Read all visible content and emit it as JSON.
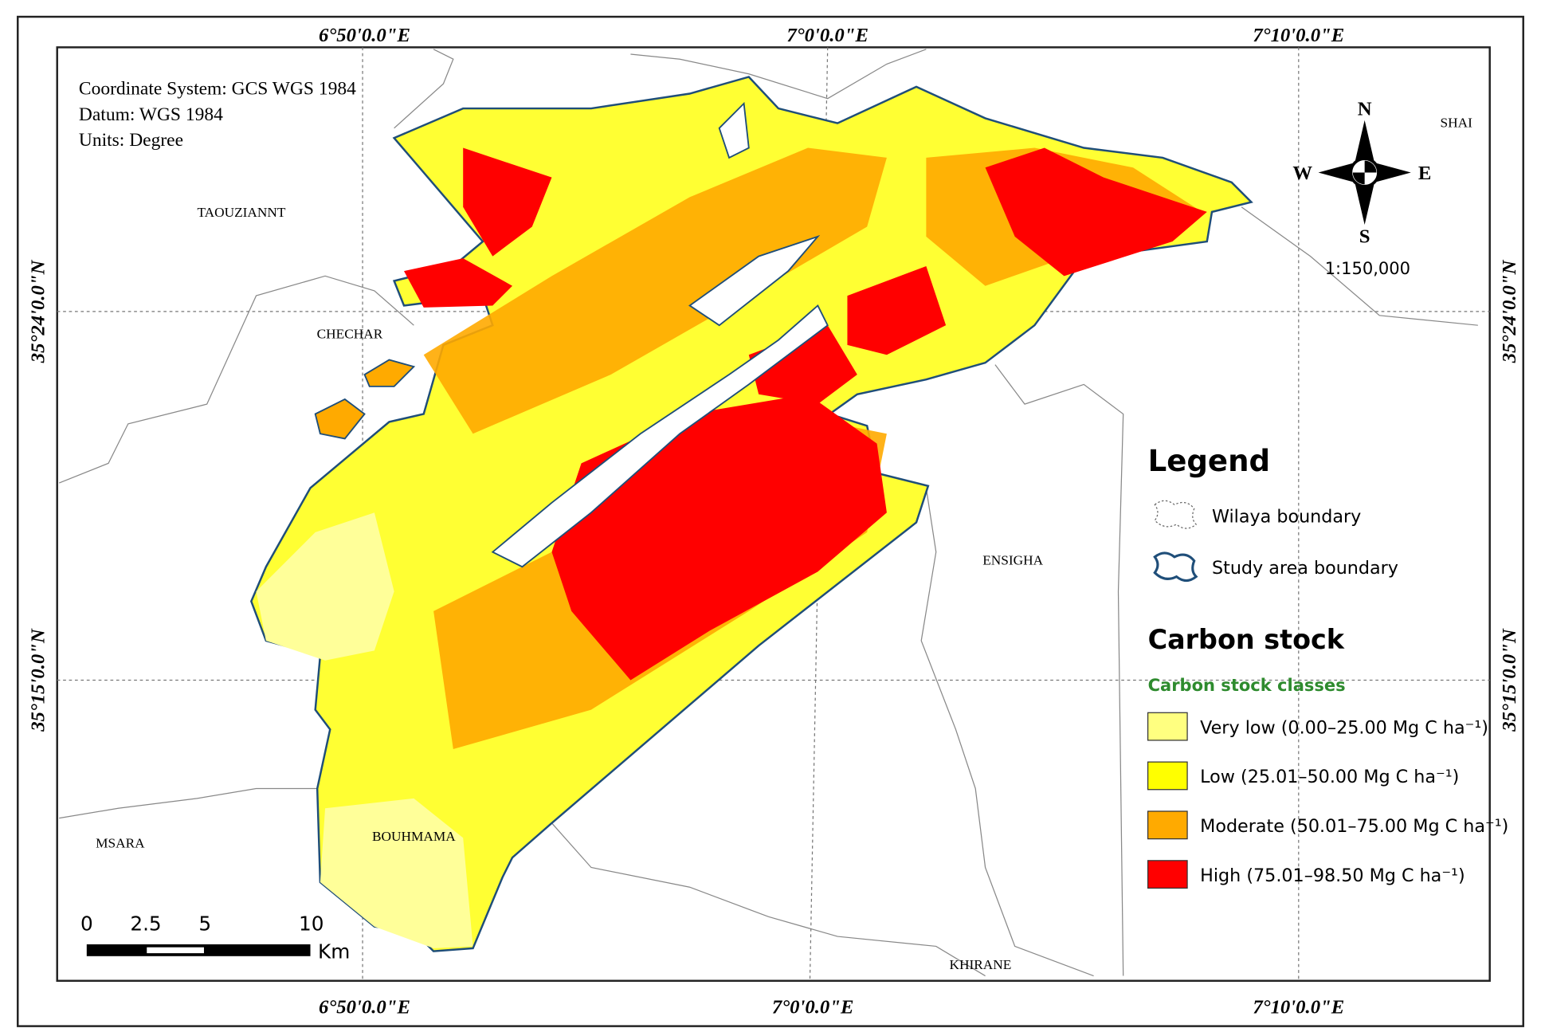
{
  "map": {
    "grid_labels": {
      "top": [
        "6°50'0.0\"E",
        "7°0'0.0\"E",
        "7°10'0.0\"E"
      ],
      "bottom": [
        "6°50'0.0\"E",
        "7°0'0.0\"E",
        "7°10'0.0\"E"
      ],
      "left": [
        "35°24'0.0\"N",
        "35°15'0.0\"N"
      ],
      "right": [
        "35°24'0.0\"N",
        "35°15'0.0\"N"
      ]
    },
    "info": [
      "Coordinate System: GCS WGS 1984",
      "Datum: WGS 1984",
      "Units: Degree"
    ],
    "places": [
      "TAOUZIANNT",
      "CHECHAR",
      "ENSIGHA",
      "MSARA",
      "BOUHMAMA",
      "KHIRANE",
      "SHAI"
    ],
    "compass": {
      "n": "N",
      "s": "S",
      "w": "W",
      "e": "E"
    },
    "scale_ratio": "1:150,000",
    "scale_bar": {
      "labels": [
        0,
        2.5,
        5,
        10
      ],
      "unit": "Km"
    },
    "legend": {
      "title": "Legend",
      "items": [
        "Wilaya boundary",
        "Study area boundary"
      ],
      "carbon_title": "Carbon stock",
      "classes_title": "Carbon stock classes",
      "classes": [
        {
          "label": "Very low (0.00–25.00 Mg C ha⁻¹)",
          "color": "#ffff80"
        },
        {
          "label": "Low (25.01–50.00 Mg C ha⁻¹)",
          "color": "#ffff00"
        },
        {
          "label": "Moderate (50.01–75.00 Mg C ha⁻¹)",
          "color": "#ffaa00"
        },
        {
          "label": "High (75.01–98.50 Mg C ha⁻¹)",
          "color": "#ff0000"
        }
      ]
    }
  }
}
